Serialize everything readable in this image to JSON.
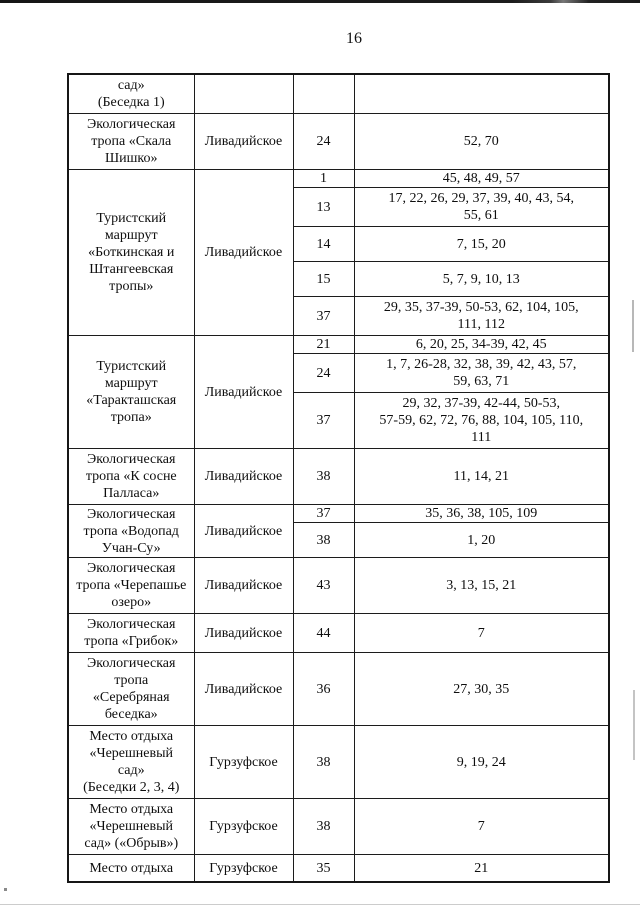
{
  "page_number": "16",
  "table": {
    "groups": [
      {
        "name": "сад»\n(Беседка 1)",
        "district": "",
        "entries": [
          {
            "num": "",
            "refs": ""
          }
        ]
      },
      {
        "name": "Экологическая\nтропа «Скала\nШишко»",
        "district": "Ливадийское",
        "entries": [
          {
            "num": "24",
            "refs": "52, 70"
          }
        ]
      },
      {
        "name": "Туристский\nмаршрут\n«Боткинская и\nШтангеевская\nтропы»",
        "district": "Ливадийское",
        "entries": [
          {
            "num": "1",
            "refs": "45, 48, 49, 57"
          },
          {
            "num": "13",
            "refs": "17, 22, 26, 29, 37, 39, 40, 43, 54,\n55, 61"
          },
          {
            "num": "14",
            "refs": "7, 15, 20"
          },
          {
            "num": "15",
            "refs": "5, 7, 9, 10, 13"
          },
          {
            "num": "37",
            "refs": "29, 35, 37-39, 50-53, 62, 104, 105,\n111, 112"
          }
        ]
      },
      {
        "name": "Туристский\nмаршрут\n«Таракташская\nтропа»",
        "district": "Ливадийское",
        "entries": [
          {
            "num": "21",
            "refs": "6, 20, 25, 34-39, 42, 45"
          },
          {
            "num": "24",
            "refs": "1, 7, 26-28, 32, 38, 39, 42, 43, 57,\n59, 63, 71"
          },
          {
            "num": "37",
            "refs": "29, 32, 37-39, 42-44, 50-53,\n57-59, 62, 72, 76, 88, 104, 105, 110,\n111"
          }
        ]
      },
      {
        "name": "Экологическая\nтропа «К сосне\nПалласа»",
        "district": "Ливадийское",
        "entries": [
          {
            "num": "38",
            "refs": "11, 14, 21"
          }
        ]
      },
      {
        "name": "Экологическая\nтропа «Водопад\nУчан-Су»",
        "district": "Ливадийское",
        "entries": [
          {
            "num": "37",
            "refs": "35, 36, 38, 105, 109"
          },
          {
            "num": "38",
            "refs": "1, 20"
          }
        ]
      },
      {
        "name": "Экологическая\nтропа «Черепашье\nозеро»",
        "district": "Ливадийское",
        "entries": [
          {
            "num": "43",
            "refs": "3, 13, 15, 21"
          }
        ]
      },
      {
        "name": "Экологическая\nтропа «Грибок»",
        "district": "Ливадийское",
        "entries": [
          {
            "num": "44",
            "refs": "7"
          }
        ]
      },
      {
        "name": "Экологическая\nтропа\n«Серебряная\nбеседка»",
        "district": "Ливадийское",
        "entries": [
          {
            "num": "36",
            "refs": "27, 30, 35"
          }
        ]
      },
      {
        "name": "Место отдыха\n«Черешневый\nсад»\n(Беседки 2, 3, 4)",
        "district": "Гурзуфское",
        "entries": [
          {
            "num": "38",
            "refs": "9, 19, 24"
          }
        ]
      },
      {
        "name": "Место отдыха\n«Черешневый\nсад» («Обрыв»)",
        "district": "Гурзуфское",
        "entries": [
          {
            "num": "38",
            "refs": "7"
          }
        ]
      },
      {
        "name": "Место отдыха",
        "district": "Гурзуфское",
        "entries": [
          {
            "num": "35",
            "refs": "21"
          }
        ]
      }
    ]
  }
}
